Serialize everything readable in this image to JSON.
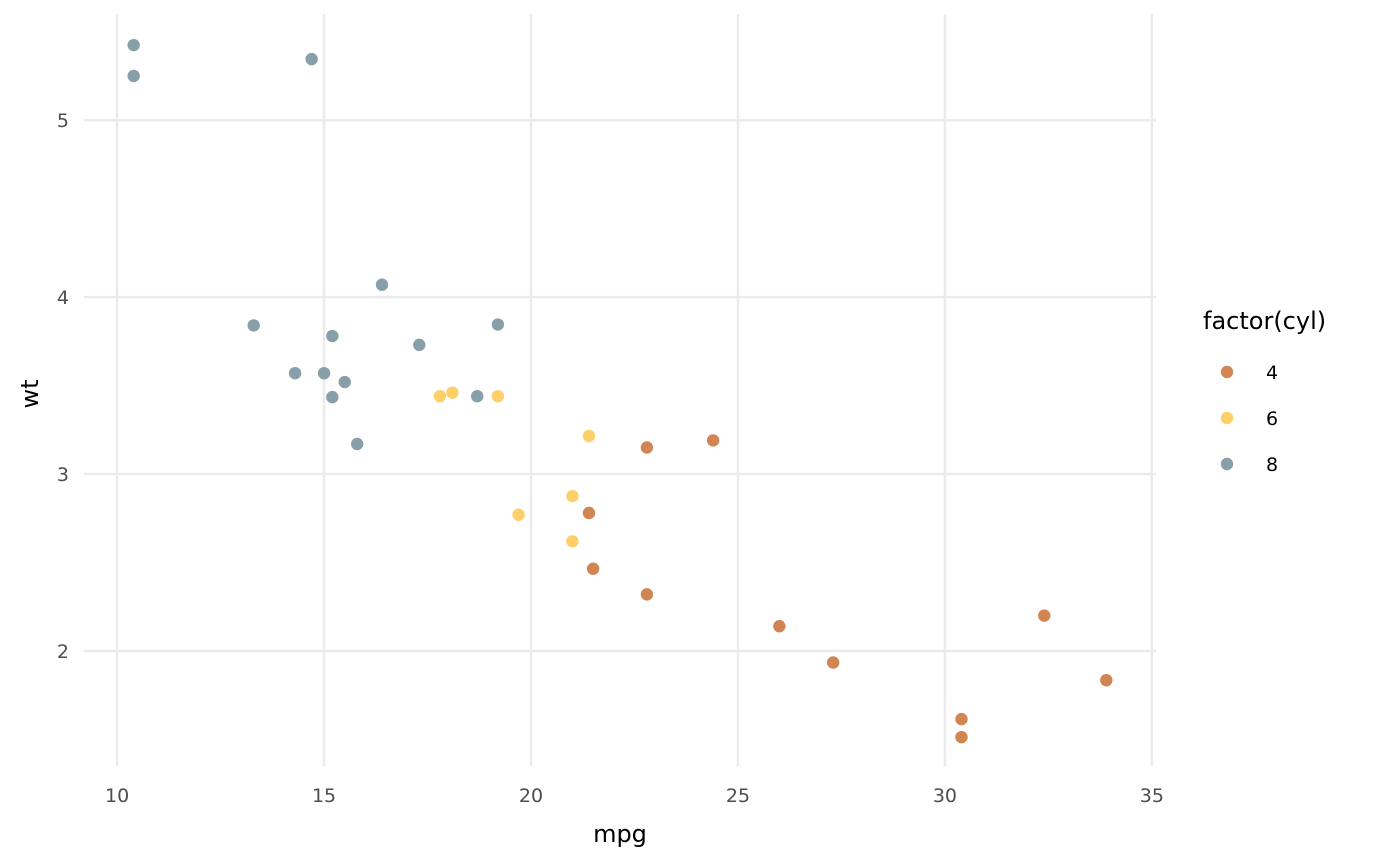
{
  "chart_data": {
    "type": "scatter",
    "xlabel": "mpg",
    "ylabel": "wt",
    "xlim": [
      9.2,
      35.1
    ],
    "ylim": [
      1.35,
      5.6
    ],
    "x_ticks": [
      10,
      15,
      20,
      25,
      30,
      35
    ],
    "y_ticks": [
      2,
      3,
      4,
      5
    ],
    "x_tick_labels": [
      "10",
      "15",
      "20",
      "25",
      "30",
      "35"
    ],
    "y_tick_labels": [
      "2",
      "3",
      "4",
      "5"
    ],
    "grid": true,
    "legend": {
      "title": "factor(cyl)",
      "placement": "right",
      "entries": [
        {
          "label": "4",
          "color": "#D08552"
        },
        {
          "label": "6",
          "color": "#FFCF6A"
        },
        {
          "label": "8",
          "color": "#879FA9"
        }
      ]
    },
    "series": [
      {
        "name": "4",
        "color": "#D08552",
        "points": [
          {
            "x": 22.8,
            "y": 2.32
          },
          {
            "x": 24.4,
            "y": 3.19
          },
          {
            "x": 22.8,
            "y": 3.15
          },
          {
            "x": 32.4,
            "y": 2.2
          },
          {
            "x": 30.4,
            "y": 1.615
          },
          {
            "x": 33.9,
            "y": 1.835
          },
          {
            "x": 21.5,
            "y": 2.465
          },
          {
            "x": 27.3,
            "y": 1.935
          },
          {
            "x": 26.0,
            "y": 2.14
          },
          {
            "x": 30.4,
            "y": 1.513
          },
          {
            "x": 21.4,
            "y": 2.78
          }
        ]
      },
      {
        "name": "6",
        "color": "#FFCF6A",
        "points": [
          {
            "x": 21.0,
            "y": 2.62
          },
          {
            "x": 21.0,
            "y": 2.875
          },
          {
            "x": 21.4,
            "y": 3.215
          },
          {
            "x": 18.1,
            "y": 3.46
          },
          {
            "x": 19.2,
            "y": 3.44
          },
          {
            "x": 17.8,
            "y": 3.44
          },
          {
            "x": 19.7,
            "y": 2.77
          }
        ]
      },
      {
        "name": "8",
        "color": "#879FA9",
        "points": [
          {
            "x": 10.4,
            "y": 5.424
          },
          {
            "x": 10.4,
            "y": 5.25
          },
          {
            "x": 14.7,
            "y": 5.345
          },
          {
            "x": 16.4,
            "y": 4.07
          },
          {
            "x": 13.3,
            "y": 3.84
          },
          {
            "x": 19.2,
            "y": 3.845
          },
          {
            "x": 15.2,
            "y": 3.78
          },
          {
            "x": 17.3,
            "y": 3.73
          },
          {
            "x": 14.3,
            "y": 3.57
          },
          {
            "x": 15.0,
            "y": 3.57
          },
          {
            "x": 15.5,
            "y": 3.52
          },
          {
            "x": 15.2,
            "y": 3.435
          },
          {
            "x": 18.7,
            "y": 3.44
          },
          {
            "x": 15.8,
            "y": 3.17
          }
        ]
      }
    ]
  }
}
